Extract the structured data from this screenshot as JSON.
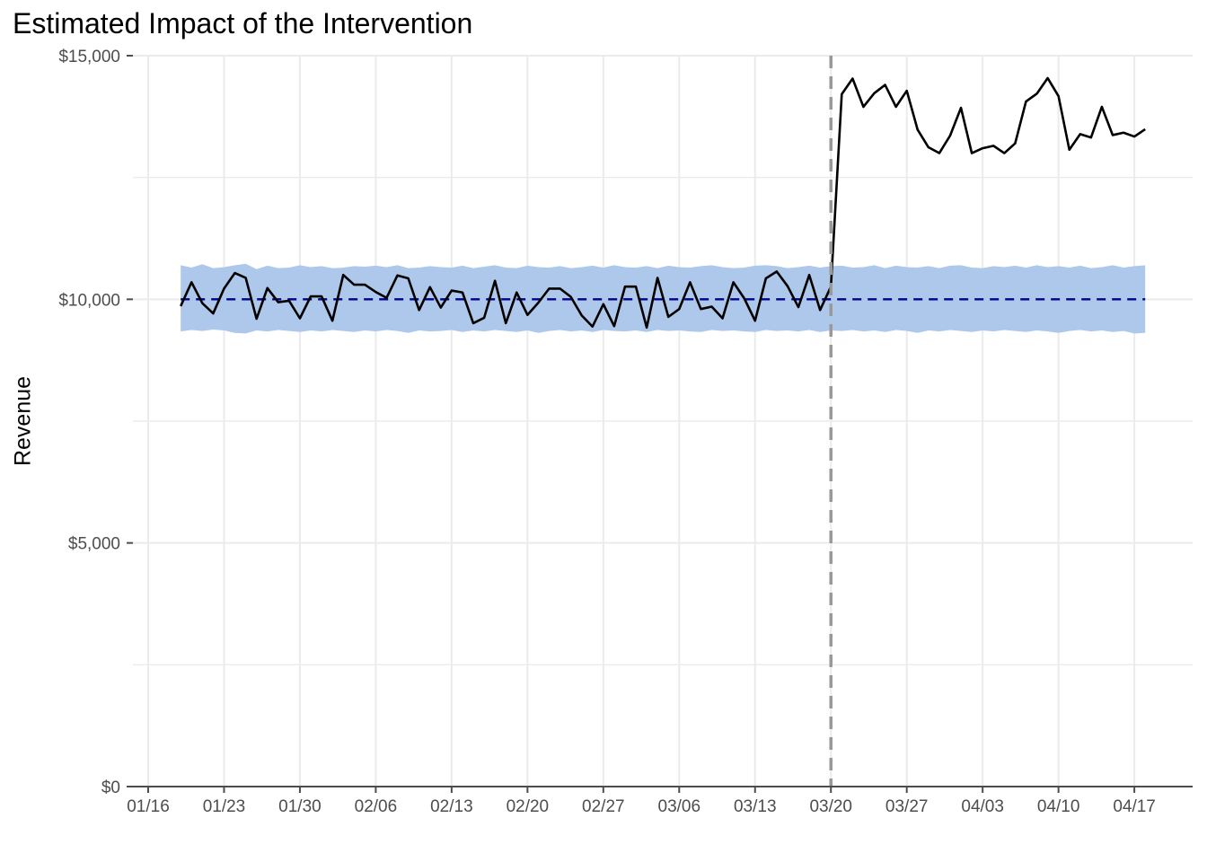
{
  "chart_data": {
    "type": "line",
    "title": "Estimated Impact of the Intervention",
    "xlabel": "",
    "ylabel": "Revenue",
    "x_start": "2024-01-19",
    "x_ticks": [
      "01/16",
      "01/23",
      "01/30",
      "02/06",
      "02/13",
      "02/20",
      "02/27",
      "03/06",
      "03/13",
      "03/20",
      "03/27",
      "04/03",
      "04/10",
      "04/17"
    ],
    "y_ticks": [
      "$0",
      "$5,000",
      "$10,000",
      "$15,000"
    ],
    "y_tick_values": [
      0,
      5000,
      10000,
      15000
    ],
    "ylim": [
      0,
      15000
    ],
    "intervention_date": "03/20",
    "grid": true,
    "legend": "none",
    "series": [
      {
        "values": [
          9860,
          10350,
          9920,
          9710,
          10220,
          10540,
          10440,
          9600,
          10230,
          9940,
          9970,
          9610,
          10060,
          10060,
          9560,
          10500,
          10300,
          10300,
          10150,
          10030,
          10490,
          10430,
          9780,
          10250,
          9830,
          10180,
          10140,
          9510,
          9620,
          10380,
          9510,
          10140,
          9680,
          9930,
          10220,
          10220,
          10050,
          9670,
          9440,
          9900,
          9450,
          10260,
          10260,
          9420,
          10440,
          9640,
          9800,
          10350,
          9800,
          9850,
          9610,
          10350,
          10020,
          9560,
          10430,
          10570,
          10270,
          9840,
          10500,
          9780,
          10260,
          14210,
          14530,
          13950,
          14230,
          14400,
          13950,
          14280,
          13480,
          13120,
          13000,
          13360,
          13930,
          13000,
          13100,
          13150,
          13000,
          13200,
          14060,
          14220,
          14540,
          14170,
          13070,
          13390,
          13320,
          13950,
          13370,
          13420,
          13340,
          13490
        ]
      },
      {
        "values": [
          10000
        ]
      }
    ],
    "band": {
      "upper": [
        10700,
        10650,
        10720,
        10640,
        10660,
        10700,
        10730,
        10620,
        10690,
        10640,
        10650,
        10700,
        10660,
        10680,
        10640,
        10650,
        10680,
        10670,
        10690,
        10660,
        10700,
        10640,
        10650,
        10680,
        10660,
        10650,
        10690,
        10640,
        10670,
        10700,
        10650,
        10640,
        10690,
        10660,
        10650,
        10680,
        10640,
        10660,
        10690,
        10650,
        10700,
        10660,
        10650,
        10680,
        10640,
        10690,
        10660,
        10650,
        10680,
        10700,
        10660,
        10640,
        10650,
        10690,
        10700,
        10680,
        10640,
        10660,
        10690,
        10650,
        10680,
        10690,
        10650,
        10660,
        10700,
        10640,
        10690,
        10660,
        10650,
        10680,
        10640,
        10690,
        10700,
        10650,
        10640,
        10680,
        10660,
        10690,
        10650,
        10700,
        10660,
        10680,
        10650,
        10690,
        10640,
        10660,
        10700,
        10650,
        10680,
        10700
      ],
      "lower": [
        9340,
        9370,
        9350,
        9380,
        9360,
        9310,
        9300,
        9360,
        9340,
        9370,
        9350,
        9330,
        9360,
        9340,
        9370,
        9350,
        9330,
        9360,
        9340,
        9370,
        9350,
        9310,
        9360,
        9340,
        9350,
        9370,
        9330,
        9360,
        9340,
        9370,
        9350,
        9330,
        9360,
        9310,
        9350,
        9370,
        9340,
        9360,
        9330,
        9370,
        9350,
        9340,
        9360,
        9330,
        9370,
        9350,
        9360,
        9340,
        9330,
        9370,
        9350,
        9360,
        9340,
        9330,
        9370,
        9350,
        9360,
        9340,
        9370,
        9330,
        9360,
        9350,
        9370,
        9340,
        9360,
        9330,
        9370,
        9350,
        9310,
        9360,
        9340,
        9370,
        9350,
        9330,
        9360,
        9340,
        9370,
        9350,
        9330,
        9360,
        9340,
        9310,
        9350,
        9370,
        9340,
        9360,
        9330,
        9350,
        9300,
        9310
      ]
    },
    "colors": {
      "observed": "#000000",
      "counterfactual": "#00008b",
      "band": "#adc8eb",
      "intervention": "#999999",
      "grid": "#ebebeb",
      "axis": "#4d4d4d"
    }
  }
}
